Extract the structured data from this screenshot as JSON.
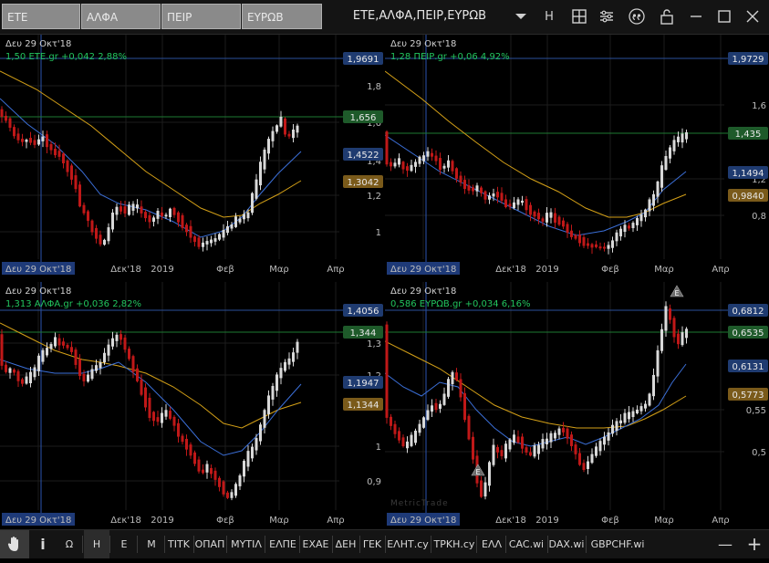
{
  "toolbar": {
    "symbols": [
      "ΕΤΕ",
      "ΑΛΦΑ",
      "ΠΕΙΡ",
      "ΕΥΡΩΒ"
    ],
    "workspace_title": "ΕΤΕ,ΑΛΦΑ,ΠΕΙΡ,ΕΥΡΩΒ",
    "period_label": "H",
    "icons": [
      "chevron-down-icon",
      "grid-icon",
      "settings-icon",
      "quote-icon",
      "unlock-icon",
      "minimize-icon",
      "maximize-icon",
      "close-icon"
    ]
  },
  "charts": [
    {
      "date_label": "Δευ 29 Οκτ'18",
      "quote": "1,50 ΕΤΕ.gr +0,042 2,88%",
      "x_ticks": [
        "Δευ 29 Οκτ'18",
        "Δεκ'18",
        "2019",
        "Φεβ",
        "Μαρ",
        "Απρ"
      ],
      "y_ticks": [
        "1,8",
        "1,6",
        "1,4",
        "1,2",
        "1"
      ],
      "badges": [
        {
          "label": "1,9691",
          "style": "blue"
        },
        {
          "label": "1,656",
          "style": "green"
        },
        {
          "label": "1,4522",
          "style": "blue"
        },
        {
          "label": "1,3042",
          "style": "brown"
        }
      ]
    },
    {
      "date_label": "Δευ 29 Οκτ'18",
      "quote": "1,28 ΠΕΙΡ.gr +0,06 4,92%",
      "x_ticks": [
        "Δευ 29 Οκτ'18",
        "Δεκ'18",
        "2019",
        "Φεβ",
        "Μαρ",
        "Απρ"
      ],
      "y_ticks": [
        "1,6",
        "1,2",
        "0,8"
      ],
      "badges": [
        {
          "label": "1,9729",
          "style": "blue"
        },
        {
          "label": "1,435",
          "style": "green"
        },
        {
          "label": "1,1494",
          "style": "blue"
        },
        {
          "label": "0,9840",
          "style": "brown"
        }
      ]
    },
    {
      "date_label": "Δευ 29 Οκτ'18",
      "quote": "1,313 ΑΛΦΑ.gr +0,036 2,82%",
      "x_ticks": [
        "Δευ 29 Οκτ'18",
        "Δεκ'18",
        "2019",
        "Φεβ",
        "Μαρ",
        "Απρ"
      ],
      "y_ticks": [
        "1,3",
        "1,2",
        "1",
        "0,9"
      ],
      "badges": [
        {
          "label": "1,4056",
          "style": "blue"
        },
        {
          "label": "1,344",
          "style": "green"
        },
        {
          "label": "1,1947",
          "style": "blue"
        },
        {
          "label": "1,1344",
          "style": "brown"
        }
      ]
    },
    {
      "date_label": "Δευ 29 Οκτ'18",
      "quote": "0,586 ΕΥΡΩΒ.gr +0,034 6,16%",
      "x_ticks": [
        "Δευ 29 Οκτ'18",
        "Δεκ'18",
        "2019",
        "Φεβ",
        "Μαρ",
        "Απρ"
      ],
      "y_ticks": [
        "0,55",
        "0,5"
      ],
      "badges": [
        {
          "label": "0,6812",
          "style": "blue"
        },
        {
          "label": "0,6535",
          "style": "green"
        },
        {
          "label": "0,6131",
          "style": "blue"
        },
        {
          "label": "0,5773",
          "style": "brown"
        }
      ],
      "markers": [
        "E",
        "E"
      ],
      "watermark": "MetricTrade"
    }
  ],
  "bottom": {
    "tabs": [
      "Ω",
      "H",
      "E",
      "M",
      "TITK",
      "ΟΠΑΠ",
      "ΜΥΤΙΛ",
      "ΕΛΠΕ",
      "ΕΧΑΕ",
      "ΔΕΗ",
      "ΓΕΚ",
      "ΕΛΗΤ.cy",
      "ΤΡΚΗ.cy",
      "ΕΛΛ",
      "CAC.wi",
      "DAX.wi",
      "GBPCHF.wi"
    ],
    "active_tab": "H",
    "left_icons": [
      "hand-icon",
      "info-icon"
    ],
    "right_icons": [
      "minus-icon",
      "plus-icon"
    ]
  },
  "colors": {
    "up_candle": "#d9d9d9",
    "down_candle": "#c01818",
    "ma_short": "#3b6fd8",
    "ma_long": "#d4a017",
    "green_line": "#1e7a32",
    "blue_line": "#2a4f9a",
    "badge_blue": "#1f3b70",
    "badge_green": "#1e5a2a",
    "badge_brown": "#7a5a1a"
  }
}
